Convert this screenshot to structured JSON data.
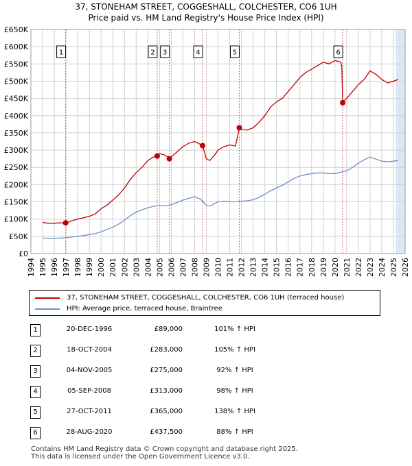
{
  "title_line1": "37, STONEHAM STREET, COGGESHALL, COLCHESTER, CO6 1UH",
  "title_line2": "Price paid vs. HM Land Registry's House Price Index (HPI)",
  "colors": {
    "property": "#c00000",
    "hpi": "#6a8fc8",
    "highlight": "#dde6f5",
    "grid": "#d0d0d0",
    "vline": "#e06060"
  },
  "chart_data": {
    "type": "line",
    "title": "37, STONEHAM STREET, COGGESHALL, COLCHESTER, CO6 1UH",
    "subtitle": "Price paid vs. HM Land Registry's House Price Index (HPI)",
    "xlim": [
      1994,
      2026
    ],
    "ylim": [
      0,
      650000
    ],
    "x_ticks": [
      "1994",
      "1995",
      "1996",
      "1997",
      "1998",
      "1999",
      "2000",
      "2001",
      "2002",
      "2003",
      "2004",
      "2005",
      "2006",
      "2007",
      "2008",
      "2009",
      "2010",
      "2011",
      "2012",
      "2013",
      "2014",
      "2015",
      "2016",
      "2017",
      "2018",
      "2019",
      "2020",
      "2021",
      "2022",
      "2023",
      "2024",
      "2025",
      "2026"
    ],
    "y_ticks": [
      {
        "v": 0,
        "label": "£0"
      },
      {
        "v": 50000,
        "label": "£50K"
      },
      {
        "v": 100000,
        "label": "£100K"
      },
      {
        "v": 150000,
        "label": "£150K"
      },
      {
        "v": 200000,
        "label": "£200K"
      },
      {
        "v": 250000,
        "label": "£250K"
      },
      {
        "v": 300000,
        "label": "£300K"
      },
      {
        "v": 350000,
        "label": "£350K"
      },
      {
        "v": 400000,
        "label": "£400K"
      },
      {
        "v": 450000,
        "label": "£450K"
      },
      {
        "v": 500000,
        "label": "£500K"
      },
      {
        "v": 550000,
        "label": "£550K"
      },
      {
        "v": 600000,
        "label": "£600K"
      },
      {
        "v": 650000,
        "label": "£650K"
      }
    ],
    "highlight_ranges": [
      [
        2025.2,
        2026
      ]
    ],
    "series": [
      {
        "name": "37, STONEHAM STREET, COGGESHALL, COLCHESTER, CO6 1UH (terraced house)",
        "color": "#c00000",
        "x": [
          1995.0,
          1995.5,
          1996.0,
          1996.5,
          1996.97,
          1997.5,
          1998.0,
          1998.5,
          1999.0,
          1999.5,
          2000.0,
          2000.5,
          2001.0,
          2001.5,
          2002.0,
          2002.5,
          2003.0,
          2003.5,
          2004.0,
          2004.5,
          2004.8,
          2005.0,
          2005.5,
          2005.85,
          2006.0,
          2006.5,
          2007.0,
          2007.5,
          2008.0,
          2008.3,
          2008.68,
          2009.0,
          2009.3,
          2009.7,
          2010.0,
          2010.5,
          2011.0,
          2011.5,
          2011.82,
          2012.0,
          2012.5,
          2013.0,
          2013.5,
          2014.0,
          2014.5,
          2015.0,
          2015.5,
          2016.0,
          2016.5,
          2017.0,
          2017.5,
          2018.0,
          2018.5,
          2019.0,
          2019.5,
          2020.0,
          2020.5,
          2020.58,
          2020.66,
          2021.0,
          2021.5,
          2022.0,
          2022.5,
          2023.0,
          2023.5,
          2024.0,
          2024.5,
          2025.0,
          2025.4
        ],
        "values": [
          90000,
          88000,
          88000,
          89000,
          89000,
          95000,
          100000,
          104000,
          108000,
          115000,
          130000,
          140000,
          155000,
          170000,
          190000,
          215000,
          235000,
          250000,
          270000,
          280000,
          283000,
          290000,
          285000,
          275000,
          280000,
          295000,
          310000,
          320000,
          325000,
          320000,
          313000,
          275000,
          270000,
          285000,
          300000,
          310000,
          315000,
          312000,
          365000,
          360000,
          358000,
          365000,
          380000,
          400000,
          425000,
          440000,
          450000,
          470000,
          490000,
          510000,
          525000,
          535000,
          545000,
          555000,
          550000,
          560000,
          555000,
          545000,
          437500,
          450000,
          470000,
          490000,
          505000,
          530000,
          520000,
          505000,
          495000,
          500000,
          505000
        ]
      },
      {
        "name": "HPI: Average price, terraced house, Braintree",
        "color": "#6a8fc8",
        "x": [
          1995.0,
          1995.5,
          1996.0,
          1996.5,
          1997.0,
          1997.5,
          1998.0,
          1998.5,
          1999.0,
          1999.5,
          2000.0,
          2000.5,
          2001.0,
          2001.5,
          2002.0,
          2002.5,
          2003.0,
          2003.5,
          2004.0,
          2004.5,
          2005.0,
          2005.5,
          2006.0,
          2006.5,
          2007.0,
          2007.5,
          2008.0,
          2008.5,
          2009.0,
          2009.3,
          2009.7,
          2010.0,
          2010.5,
          2011.0,
          2011.5,
          2012.0,
          2012.5,
          2013.0,
          2013.5,
          2014.0,
          2014.5,
          2015.0,
          2015.5,
          2016.0,
          2016.5,
          2017.0,
          2017.5,
          2018.0,
          2018.5,
          2019.0,
          2019.5,
          2020.0,
          2020.5,
          2021.0,
          2021.5,
          2022.0,
          2022.5,
          2023.0,
          2023.5,
          2024.0,
          2024.5,
          2025.0,
          2025.4
        ],
        "values": [
          45000,
          44500,
          44500,
          45000,
          46000,
          48000,
          50000,
          52000,
          55000,
          58000,
          63000,
          70000,
          77000,
          85000,
          97000,
          110000,
          120000,
          127000,
          133000,
          137000,
          140000,
          138000,
          142000,
          148000,
          155000,
          160000,
          165000,
          158000,
          140000,
          138000,
          145000,
          150000,
          152000,
          150000,
          150000,
          152000,
          153000,
          156000,
          163000,
          172000,
          182000,
          190000,
          198000,
          208000,
          218000,
          225000,
          229000,
          232000,
          234000,
          234000,
          232000,
          232000,
          236000,
          240000,
          250000,
          262000,
          272000,
          280000,
          274000,
          268000,
          266000,
          268000,
          270000
        ]
      }
    ],
    "sales": [
      {
        "num": "1",
        "x": 1996.97,
        "value": 89000
      },
      {
        "num": "2",
        "x": 2004.8,
        "value": 283000
      },
      {
        "num": "3",
        "x": 2005.84,
        "value": 275000
      },
      {
        "num": "4",
        "x": 2008.68,
        "value": 313000
      },
      {
        "num": "5",
        "x": 2011.82,
        "value": 365000
      },
      {
        "num": "6",
        "x": 2020.66,
        "value": 437500
      }
    ]
  },
  "legend": {
    "property": "37, STONEHAM STREET, COGGESHALL, COLCHESTER, CO6 1UH (terraced house)",
    "hpi": "HPI: Average price, terraced house, Braintree"
  },
  "sales_table": [
    {
      "num": "1",
      "date": "20-DEC-1996",
      "price": "£89,000",
      "hpi": "101% ↑ HPI"
    },
    {
      "num": "2",
      "date": "18-OCT-2004",
      "price": "£283,000",
      "hpi": "105% ↑ HPI"
    },
    {
      "num": "3",
      "date": "04-NOV-2005",
      "price": "£275,000",
      "hpi": "92% ↑ HPI"
    },
    {
      "num": "4",
      "date": "05-SEP-2008",
      "price": "£313,000",
      "hpi": "98% ↑ HPI"
    },
    {
      "num": "5",
      "date": "27-OCT-2011",
      "price": "£365,000",
      "hpi": "138% ↑ HPI"
    },
    {
      "num": "6",
      "date": "28-AUG-2020",
      "price": "£437,500",
      "hpi": "88% ↑ HPI"
    }
  ],
  "footer": {
    "line1": "Contains HM Land Registry data © Crown copyright and database right 2025.",
    "line2": "This data is licensed under the Open Government Licence v3.0."
  }
}
